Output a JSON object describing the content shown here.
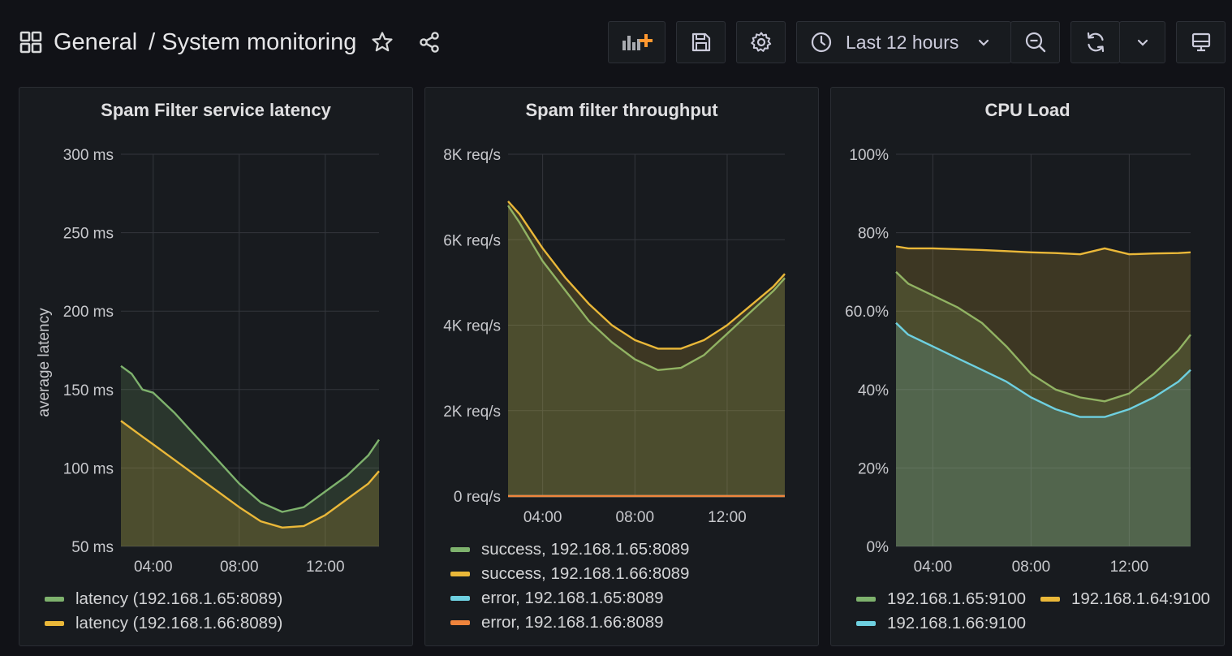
{
  "header": {
    "folder": "General",
    "separator": "/",
    "title": "System monitoring",
    "time_range": "Last 12 hours"
  },
  "colors": {
    "green": "#7eb26d",
    "yellow": "#eab839",
    "cyan": "#6ed0e0",
    "orange": "#ef843c"
  },
  "panels": [
    {
      "title": "Spam Filter service latency",
      "legend": [
        "latency (192.168.1.65:8089)",
        "latency (192.168.1.66:8089)"
      ],
      "chart_data": {
        "type": "line",
        "ylabel": "average latency",
        "yticks": [
          "50 ms",
          "100 ms",
          "150 ms",
          "200 ms",
          "250 ms",
          "300 ms"
        ],
        "xticks": [
          "04:00",
          "08:00",
          "12:00"
        ],
        "ylim": [
          50,
          300
        ],
        "xlim": [
          2.5,
          14.5
        ],
        "series": [
          {
            "name": "latency (192.168.1.65:8089)",
            "color": "#7eb26d",
            "x": [
              2.5,
              3,
              3.5,
              4,
              5,
              6,
              7,
              8,
              9,
              10,
              11,
              12,
              13,
              14,
              14.5
            ],
            "y": [
              165,
              160,
              150,
              148,
              135,
              120,
              105,
              90,
              78,
              72,
              75,
              85,
              95,
              108,
              118
            ]
          },
          {
            "name": "latency (192.168.1.66:8089)",
            "color": "#eab839",
            "x": [
              2.5,
              3,
              3.5,
              4,
              5,
              6,
              7,
              8,
              9,
              10,
              11,
              12,
              13,
              14,
              14.5
            ],
            "y": [
              130,
              125,
              120,
              115,
              105,
              95,
              85,
              75,
              66,
              62,
              63,
              70,
              80,
              90,
              98
            ]
          }
        ]
      }
    },
    {
      "title": "Spam filter throughput",
      "legend": [
        "success, 192.168.1.65:8089",
        "success, 192.168.1.66:8089",
        "error, 192.168.1.65:8089",
        "error, 192.168.1.66:8089"
      ],
      "chart_data": {
        "type": "area",
        "yticks": [
          "0 req/s",
          "2K req/s",
          "4K req/s",
          "6K req/s",
          "8K req/s"
        ],
        "xticks": [
          "04:00",
          "08:00",
          "12:00"
        ],
        "ylim": [
          0,
          8000
        ],
        "xlim": [
          2.5,
          14.5
        ],
        "series": [
          {
            "name": "success, 192.168.1.65:8089",
            "color": "#7eb26d",
            "x": [
              2.5,
              3,
              4,
              5,
              6,
              7,
              8,
              9,
              10,
              11,
              12,
              13,
              14,
              14.5
            ],
            "y": [
              6800,
              6400,
              5500,
              4800,
              4100,
              3600,
              3200,
              2950,
              3000,
              3300,
              3800,
              4300,
              4800,
              5100
            ]
          },
          {
            "name": "success, 192.168.1.66:8089",
            "color": "#eab839",
            "x": [
              2.5,
              3,
              4,
              5,
              6,
              7,
              8,
              9,
              10,
              11,
              12,
              13,
              14,
              14.5
            ],
            "y": [
              6900,
              6600,
              5800,
              5100,
              4500,
              4000,
              3650,
              3450,
              3450,
              3650,
              4000,
              4450,
              4900,
              5200
            ]
          },
          {
            "name": "error, 192.168.1.65:8089",
            "color": "#6ed0e0",
            "x": [
              2.5,
              14.5
            ],
            "y": [
              0,
              0
            ]
          },
          {
            "name": "error, 192.168.1.66:8089",
            "color": "#ef843c",
            "x": [
              2.5,
              14.5
            ],
            "y": [
              0,
              0
            ]
          }
        ]
      }
    },
    {
      "title": "CPU Load",
      "legend": [
        "192.168.1.65:9100",
        "192.168.1.64:9100",
        "192.168.1.66:9100"
      ],
      "chart_data": {
        "type": "area",
        "yticks": [
          "0%",
          "20%",
          "40%",
          "60.0%",
          "80%",
          "100%"
        ],
        "xticks": [
          "04:00",
          "08:00",
          "12:00"
        ],
        "ylim": [
          0,
          100
        ],
        "xlim": [
          2.5,
          14.5
        ],
        "series": [
          {
            "name": "192.168.1.65:9100",
            "color": "#7eb26d",
            "x": [
              2.5,
              3,
              4,
              5,
              6,
              7,
              8,
              9,
              10,
              11,
              12,
              13,
              14,
              14.5
            ],
            "y": [
              70,
              67,
              64,
              61,
              57,
              51,
              44,
              40,
              38,
              37,
              39,
              44,
              50,
              54
            ]
          },
          {
            "name": "192.168.1.64:9100",
            "color": "#eab839",
            "x": [
              2.5,
              3,
              4,
              5,
              6,
              7,
              8,
              9,
              10,
              11,
              12,
              13,
              14,
              14.5
            ],
            "y": [
              76.5,
              76,
              76,
              75.8,
              75.6,
              75.3,
              75,
              74.8,
              74.5,
              76,
              74.5,
              74.7,
              74.8,
              75
            ]
          },
          {
            "name": "192.168.1.66:9100",
            "color": "#6ed0e0",
            "x": [
              2.5,
              3,
              4,
              5,
              6,
              7,
              8,
              9,
              10,
              11,
              12,
              13,
              14,
              14.5
            ],
            "y": [
              57,
              54,
              51,
              48,
              45,
              42,
              38,
              35,
              33,
              33,
              35,
              38,
              42,
              45
            ]
          }
        ]
      }
    }
  ]
}
